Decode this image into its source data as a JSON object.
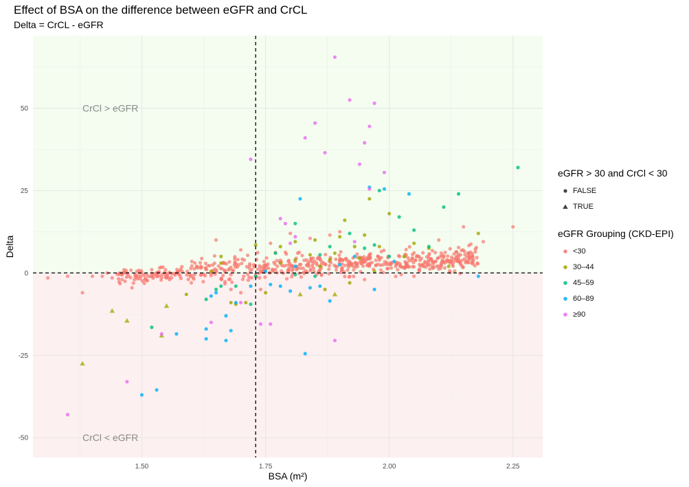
{
  "title": "Effect of BSA on the difference between eGFR and CrCL",
  "subtitle": "Delta = CrCL - eGFR",
  "chart_data": {
    "type": "scatter",
    "xlabel": "BSA (m²)",
    "ylabel": "Delta",
    "xlim": [
      1.28,
      2.31
    ],
    "ylim": [
      -56,
      72
    ],
    "x_ticks": [
      1.5,
      1.75,
      2.0,
      2.25
    ],
    "x_tick_labels": [
      "1.50",
      "1.75",
      "2.00",
      "2.25"
    ],
    "y_ticks": [
      -50,
      -25,
      0,
      25,
      50
    ],
    "y_tick_labels": [
      "-50",
      "-25",
      "0",
      "25",
      "50"
    ],
    "grid": true,
    "reference_lines": {
      "x": 1.73,
      "y": 0
    },
    "regions": [
      {
        "label": "CrCl > eGFR",
        "condition": "Delta > 0",
        "color": "#f4fdf0",
        "label_at": [
          1.38,
          50
        ]
      },
      {
        "label": "CrCl < eGFR",
        "condition": "Delta < 0",
        "color": "#fdf0f0",
        "label_at": [
          1.38,
          -50
        ]
      }
    ],
    "legend_placement": "right",
    "shape_legend": {
      "title": "eGFR > 30 and CrCl < 30",
      "entries": [
        "FALSE",
        "TRUE"
      ]
    },
    "color_legend": {
      "title": "eGFR Grouping (CKD-EPI)",
      "entries": [
        "<30",
        "30–44",
        "45–59",
        "60–89",
        "≥90"
      ]
    },
    "series": [
      {
        "name": "<30",
        "color": "#F8766D",
        "points": []
      },
      {
        "name": "30–44",
        "color": "#A3A500",
        "points": [
          [
            1.44,
            -11.5,
            "T"
          ],
          [
            1.47,
            -14.5,
            "T"
          ],
          [
            1.55,
            -10,
            "T"
          ],
          [
            1.59,
            -6.5
          ],
          [
            1.64,
            0.5
          ],
          [
            1.66,
            3
          ],
          [
            1.66,
            5
          ],
          [
            1.68,
            -9
          ],
          [
            1.69,
            -9.5
          ],
          [
            1.71,
            -9
          ],
          [
            1.73,
            8.5
          ],
          [
            1.75,
            -6
          ],
          [
            1.78,
            3
          ],
          [
            1.78,
            8
          ],
          [
            1.81,
            9.5
          ],
          [
            1.81,
            4
          ],
          [
            1.82,
            -6.5,
            "T"
          ],
          [
            1.84,
            5.5
          ],
          [
            1.85,
            10
          ],
          [
            1.86,
            2
          ],
          [
            1.87,
            -5
          ],
          [
            1.88,
            4
          ],
          [
            1.89,
            -6.5,
            "T"
          ],
          [
            1.89,
            6
          ],
          [
            1.9,
            11
          ],
          [
            1.91,
            16
          ],
          [
            1.92,
            -3
          ],
          [
            1.93,
            8
          ],
          [
            1.94,
            4.5
          ],
          [
            1.95,
            11.5
          ],
          [
            1.96,
            22.5
          ],
          [
            1.97,
            0.5
          ],
          [
            1.98,
            8
          ],
          [
            2.0,
            18
          ],
          [
            2.03,
            5
          ],
          [
            2.05,
            9
          ],
          [
            2.08,
            7.5
          ],
          [
            2.12,
            2
          ],
          [
            2.18,
            12
          ],
          [
            1.38,
            -27.5,
            "T"
          ],
          [
            1.54,
            -19,
            "T"
          ]
        ]
      },
      {
        "name": "45–59",
        "color": "#00BF7D",
        "points": [
          [
            1.52,
            -16.5
          ],
          [
            1.63,
            -8
          ],
          [
            1.65,
            -5
          ],
          [
            1.66,
            -4
          ],
          [
            1.69,
            -4
          ],
          [
            1.72,
            -9.5
          ],
          [
            1.73,
            -1
          ],
          [
            1.77,
            6
          ],
          [
            1.81,
            15
          ],
          [
            1.81,
            -0.5
          ],
          [
            1.85,
            -1
          ],
          [
            1.86,
            5.5
          ],
          [
            1.88,
            8
          ],
          [
            1.92,
            12
          ],
          [
            1.95,
            7.5
          ],
          [
            1.97,
            8.5
          ],
          [
            1.98,
            25
          ],
          [
            2.0,
            5
          ],
          [
            2.02,
            17
          ],
          [
            2.05,
            13
          ],
          [
            2.08,
            8
          ],
          [
            2.11,
            20
          ],
          [
            2.14,
            24
          ],
          [
            2.26,
            32
          ]
        ]
      },
      {
        "name": "60–89",
        "color": "#00B0F6",
        "points": [
          [
            1.5,
            -37
          ],
          [
            1.53,
            -35.5
          ],
          [
            1.57,
            -18.5
          ],
          [
            1.63,
            -17
          ],
          [
            1.63,
            -20
          ],
          [
            1.64,
            -7
          ],
          [
            1.65,
            -6
          ],
          [
            1.67,
            -20.5
          ],
          [
            1.67,
            -13
          ],
          [
            1.68,
            -17.5
          ],
          [
            1.69,
            -9
          ],
          [
            1.72,
            -4
          ],
          [
            1.75,
            0.5
          ],
          [
            1.76,
            -3.5
          ],
          [
            1.78,
            -4
          ],
          [
            1.8,
            -5.5
          ],
          [
            1.81,
            2
          ],
          [
            1.82,
            22.5
          ],
          [
            1.83,
            -24.5
          ],
          [
            1.84,
            -4.5
          ],
          [
            1.86,
            -4
          ],
          [
            1.88,
            -8.5
          ],
          [
            1.9,
            2.5
          ],
          [
            1.93,
            5
          ],
          [
            1.96,
            26
          ],
          [
            1.97,
            -5
          ],
          [
            1.99,
            25.5
          ],
          [
            2.01,
            3.5
          ],
          [
            2.04,
            24
          ],
          [
            2.18,
            -1
          ]
        ]
      },
      {
        "name": "≥90",
        "color": "#E76BF3",
        "points": [
          [
            1.35,
            -43
          ],
          [
            1.47,
            -33
          ],
          [
            1.54,
            -18.5
          ],
          [
            1.64,
            -15
          ],
          [
            1.7,
            -9
          ],
          [
            1.72,
            34.5
          ],
          [
            1.74,
            -15.5
          ],
          [
            1.76,
            -15.5
          ],
          [
            1.78,
            16.5
          ],
          [
            1.79,
            15
          ],
          [
            1.81,
            11
          ],
          [
            1.83,
            41
          ],
          [
            1.85,
            45.5
          ],
          [
            1.87,
            36.5
          ],
          [
            1.89,
            65.5
          ],
          [
            1.89,
            -20.5
          ],
          [
            1.92,
            52.5
          ],
          [
            1.94,
            33
          ],
          [
            1.95,
            39.5
          ],
          [
            1.96,
            44.5
          ],
          [
            1.97,
            51.5
          ],
          [
            1.99,
            30.5
          ],
          [
            1.96,
            25.5
          ],
          [
            1.8,
            9
          ],
          [
            1.93,
            9.5
          ]
        ]
      }
    ]
  },
  "colors": {
    "panel_bg": "#ffffff",
    "grid": "#e6e6e6",
    "upper_region": "#f4fdf0",
    "lower_region": "#fdf0f0"
  }
}
